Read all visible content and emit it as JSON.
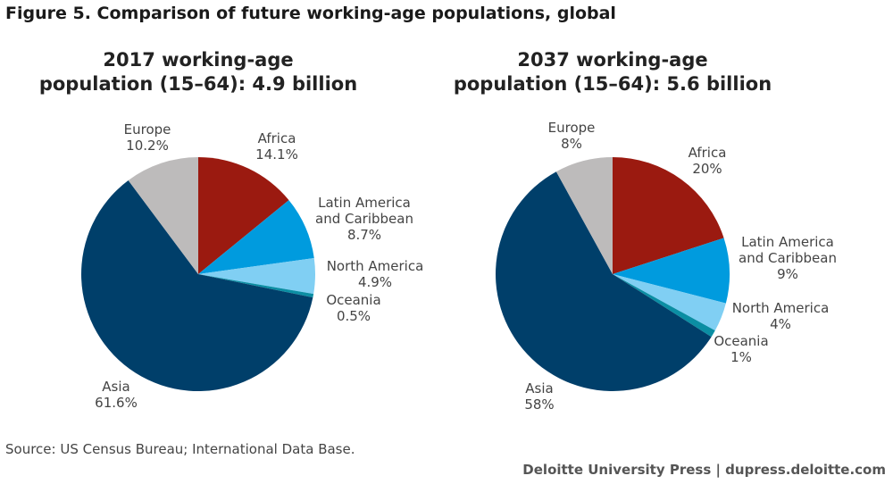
{
  "figure_title": "Figure 5. Comparison of future working-age populations, global",
  "source": "Source: US Census Bureau; International Data Base.",
  "credit": "Deloitte University Press  |  dupress.deloitte.com",
  "colors": {
    "Africa": "#9b1a10",
    "Latin America and Caribbean": "#009bde",
    "North America": "#80cff3",
    "Oceania": "#0b8ea3",
    "Asia": "#003f6a",
    "Europe": "#bdbbbb"
  },
  "chart_data": [
    {
      "type": "pie",
      "title_line1": "2017 working-age",
      "title_line2": "population (15–64): 4.9 billion",
      "slices": [
        {
          "name": "Africa",
          "value": 14.1,
          "label": "14.1%"
        },
        {
          "name": "Latin America and Caribbean",
          "value": 8.7,
          "label": "8.7%"
        },
        {
          "name": "North America",
          "value": 4.9,
          "label": "4.9%"
        },
        {
          "name": "Oceania",
          "value": 0.5,
          "label": "0.5%"
        },
        {
          "name": "Asia",
          "value": 61.6,
          "label": "61.6%"
        },
        {
          "name": "Europe",
          "value": 10.2,
          "label": "10.2%"
        }
      ]
    },
    {
      "type": "pie",
      "title_line1": "2037 working-age",
      "title_line2": "population (15–64): 5.6 billion",
      "slices": [
        {
          "name": "Africa",
          "value": 20,
          "label": "20%"
        },
        {
          "name": "Latin America and Caribbean",
          "value": 9,
          "label": "9%"
        },
        {
          "name": "North America",
          "value": 4,
          "label": "4%"
        },
        {
          "name": "Oceania",
          "value": 1,
          "label": "1%"
        },
        {
          "name": "Asia",
          "value": 58,
          "label": "58%"
        },
        {
          "name": "Europe",
          "value": 8,
          "label": "8%"
        }
      ]
    }
  ]
}
